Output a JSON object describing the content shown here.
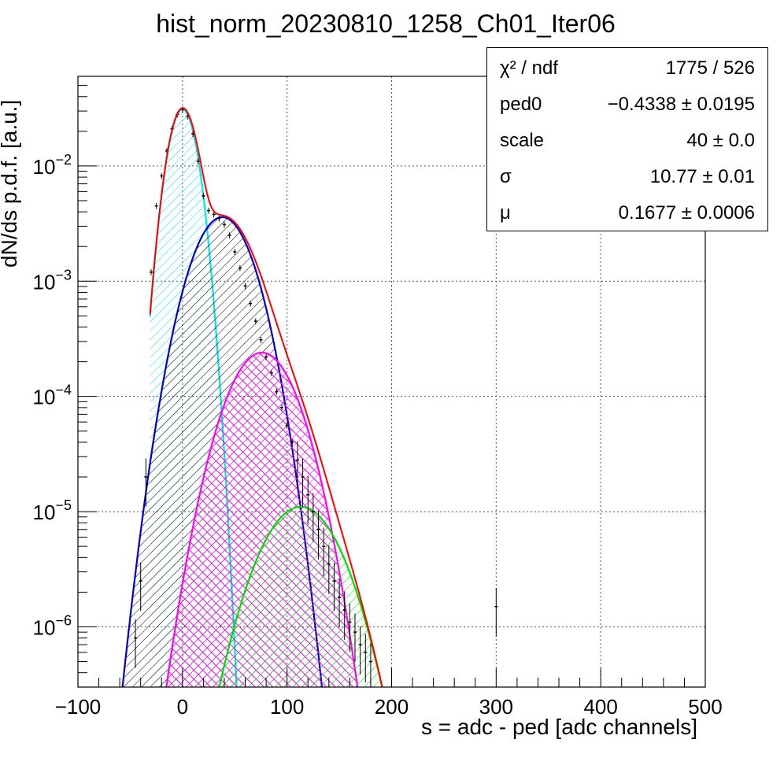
{
  "chart_data": {
    "type": "line",
    "title": "hist_norm_20230810_1258_Ch01_Iter06",
    "xlabel": "s = adc - ped [adc channels]",
    "ylabel": "dN/ds p.d.f. [a.u.]",
    "xlim": [
      -100,
      500
    ],
    "ylim": [
      3e-07,
      0.06
    ],
    "yscale": "log",
    "grid": true,
    "x_ticks": [
      -100,
      0,
      100,
      200,
      300,
      400,
      500
    ],
    "x_tick_labels": [
      "−100",
      "0",
      "100",
      "200",
      "300",
      "400",
      "500"
    ],
    "y_ticks": [
      1e-06,
      1e-05,
      0.0001,
      0.001,
      0.01
    ],
    "y_tick_labels": [
      {
        "base": "10",
        "exp": "−6"
      },
      {
        "base": "10",
        "exp": "−5"
      },
      {
        "base": "10",
        "exp": "−4"
      },
      {
        "base": "10",
        "exp": "−3"
      },
      {
        "base": "10",
        "exp": "−2"
      }
    ],
    "components": [
      {
        "color": "#00e5e5",
        "hatch": "diagonal",
        "peak_x": 0,
        "peak_y": 0.031,
        "sigma": 10.77
      },
      {
        "color": "#0000cc",
        "hatch": "diagonal",
        "peak_x": 38,
        "peak_y": 0.0036,
        "sigma": 22
      },
      {
        "color": "#ff00ff",
        "hatch": "cross",
        "peak_x": 76,
        "peak_y": 0.00024,
        "sigma": 25
      },
      {
        "color": "#00dd00",
        "hatch": "diagonal",
        "peak_x": 113,
        "peak_y": 1.1e-05,
        "sigma": 29
      }
    ],
    "total_fit": {
      "color": "#ff0000",
      "x_start": -31,
      "x_end": 200
    },
    "data_histogram": {
      "color": "#000000",
      "x": [
        -45,
        -40,
        -35,
        -30,
        -25,
        -20,
        -15,
        -10,
        -5,
        0,
        5,
        10,
        15,
        20,
        25,
        30,
        35,
        40,
        45,
        50,
        55,
        60,
        65,
        70,
        75,
        80,
        85,
        90,
        95,
        100,
        105,
        110,
        115,
        120,
        125,
        130,
        135,
        140,
        145,
        150,
        155,
        160,
        165,
        170,
        175,
        180,
        300
      ],
      "y": [
        8e-07,
        2.5e-06,
        2e-05,
        0.0012,
        0.0045,
        0.0082,
        0.0135,
        0.021,
        0.028,
        0.031,
        0.027,
        0.019,
        0.011,
        0.0055,
        0.0041,
        0.0038,
        0.0035,
        0.0031,
        0.0025,
        0.0018,
        0.0013,
        0.00091,
        0.00064,
        0.00045,
        0.00031,
        0.00022,
        0.00016,
        0.00011,
        8e-05,
        5.6e-05,
        4e-05,
        2.8e-05,
        2e-05,
        1.4e-05,
        1e-05,
        7e-06,
        5e-06,
        3.5e-06,
        2.5e-06,
        1.8e-06,
        1.4e-06,
        1.1e-06,
        9e-07,
        7e-07,
        6e-07,
        5e-07,
        1.5e-06
      ]
    }
  },
  "stats": [
    {
      "name": "χ² / ndf",
      "value": "1775 / 526"
    },
    {
      "name": "ped0",
      "value": "−0.4338 ± 0.0195"
    },
    {
      "name": "scale",
      "value": "40 ± 0.0"
    },
    {
      "name": "σ",
      "value": "10.77 ± 0.01"
    },
    {
      "name": "μ",
      "value": "0.1677 ± 0.0006"
    }
  ]
}
